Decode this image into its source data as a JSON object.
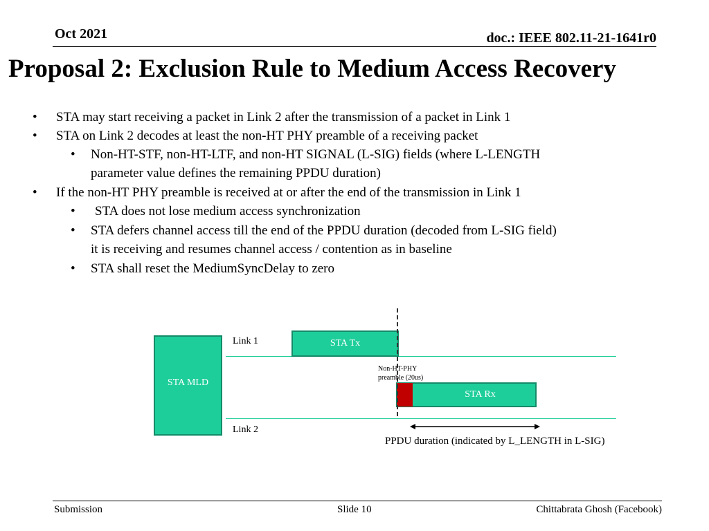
{
  "header": {
    "date": "Oct 2021",
    "doc_id": "doc.: IEEE 802.11-21-1641r0"
  },
  "title": "Proposal 2: Exclusion Rule to Medium Access Recovery",
  "bullets": {
    "b1": "STA may start receiving a packet in Link 2 after the transmission of a packet in Link 1",
    "b2": "STA on Link 2 decodes at least the non-HT PHY preamble of a receiving packet",
    "b2_1_line1": "Non-HT-STF, non-HT-LTF, and non-HT SIGNAL (L-SIG) fields (where L-LENGTH",
    "b2_1_line2": "parameter value defines the remaining PPDU duration)",
    "b3": "If the non-HT PHY preamble is received at or after the end of the transmission in Link 1",
    "b3_1": "STA does not lose medium access synchronization",
    "b3_2_line1": "STA defers channel access till the end of the PPDU duration (decoded from L-SIG field)",
    "b3_2_line2": "it is receiving and resumes channel access / contention as in baseline",
    "b3_3": "STA shall reset the MediumSyncDelay to zero"
  },
  "diagram": {
    "sta_mld": "STA MLD",
    "link1": "Link 1",
    "link2": "Link 2",
    "sta_tx": "STA Tx",
    "sta_rx": "STA Rx",
    "preamble_line1": "Non-HT-PHY",
    "preamble_line2": "preamble (20us)",
    "ppdu_label": "PPDU duration (indicated by L_LENGTH in L-SIG)",
    "colors": {
      "box": "#1ece9a",
      "preamble": "#c00000"
    }
  },
  "footer": {
    "left": "Submission",
    "center": "Slide 10",
    "right": "Chittabrata Ghosh (Facebook)"
  }
}
